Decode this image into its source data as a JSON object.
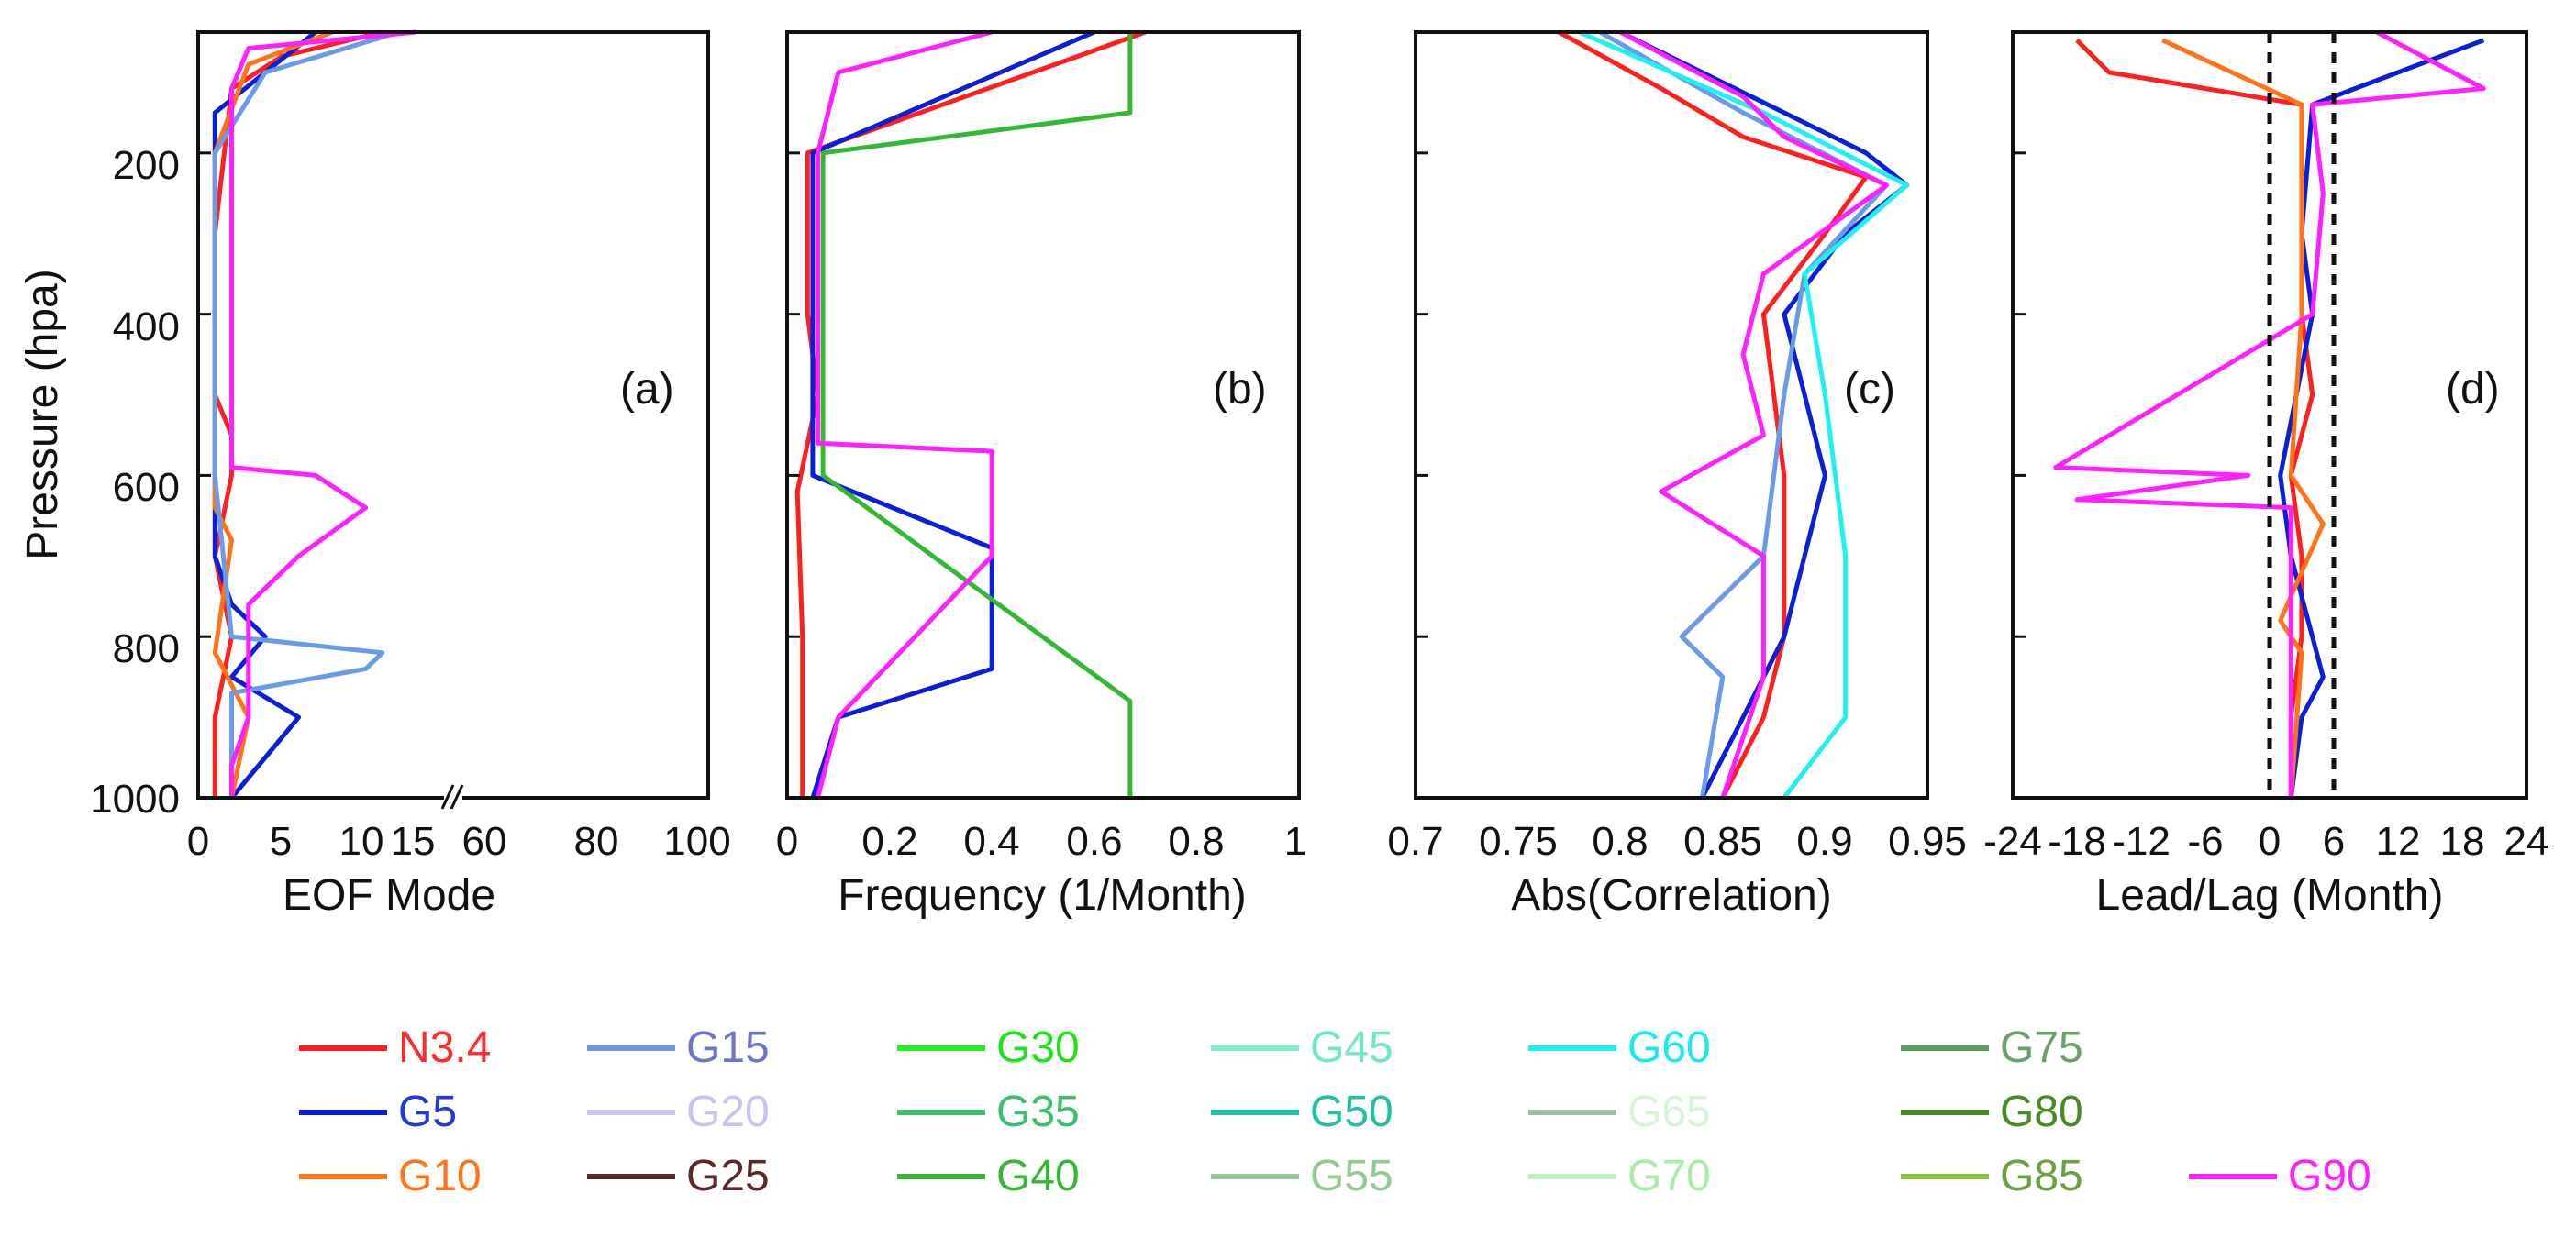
{
  "chart_data": [
    {
      "panel": "a",
      "type": "line",
      "xlabel": "EOF Mode",
      "ylabel": "Pressure (hpa)",
      "broken_x_axis": true,
      "xlim_left": [
        0,
        15
      ],
      "xlim_right": [
        60,
        100
      ],
      "xticks_left": [
        "0",
        "5",
        "10",
        "15"
      ],
      "xticks_right": [
        "60",
        "80",
        "100"
      ],
      "ylim": [
        1000,
        50
      ],
      "yticks": [
        "200",
        "400",
        "600",
        "800",
        "1000"
      ],
      "series": [
        {
          "name": "N3.4",
          "profile": [
            [
              50,
              11
            ],
            [
              80,
              5
            ],
            [
              120,
              2
            ],
            [
              300,
              1
            ],
            [
              400,
              1
            ],
            [
              500,
              1
            ],
            [
              550,
              2
            ],
            [
              600,
              2
            ],
            [
              700,
              1
            ],
            [
              800,
              2
            ],
            [
              900,
              1
            ],
            [
              1000,
              1
            ]
          ]
        },
        {
          "name": "G5",
          "profile": [
            [
              50,
              7
            ],
            [
              100,
              4
            ],
            [
              150,
              1
            ],
            [
              200,
              1
            ],
            [
              400,
              1
            ],
            [
              600,
              1
            ],
            [
              700,
              1
            ],
            [
              760,
              2
            ],
            [
              800,
              4
            ],
            [
              850,
              2
            ],
            [
              900,
              6
            ],
            [
              950,
              4
            ],
            [
              1000,
              2
            ]
          ]
        },
        {
          "name": "G10",
          "profile": [
            [
              50,
              8
            ],
            [
              90,
              3
            ],
            [
              200,
              1
            ],
            [
              400,
              1
            ],
            [
              640,
              1
            ],
            [
              680,
              2
            ],
            [
              820,
              1
            ],
            [
              860,
              2
            ],
            [
              900,
              3
            ],
            [
              1000,
              2
            ]
          ]
        },
        {
          "name": "G15",
          "profile": [
            [
              50,
              12
            ],
            [
              100,
              4
            ],
            [
              200,
              1
            ],
            [
              400,
              1
            ],
            [
              600,
              1
            ],
            [
              800,
              2
            ],
            [
              820,
              11
            ],
            [
              840,
              10
            ],
            [
              870,
              2
            ],
            [
              1000,
              2
            ]
          ]
        },
        {
          "name": "G90",
          "profile": [
            [
              50,
              13
            ],
            [
              70,
              3
            ],
            [
              120,
              2
            ],
            [
              175,
              2
            ],
            [
              300,
              2
            ],
            [
              400,
              2
            ],
            [
              590,
              2
            ],
            [
              600,
              7
            ],
            [
              640,
              10
            ],
            [
              700,
              6
            ],
            [
              760,
              3
            ],
            [
              900,
              3
            ],
            [
              960,
              2
            ],
            [
              1000,
              2
            ]
          ]
        }
      ]
    },
    {
      "panel": "b",
      "type": "line",
      "xlabel": "Frequency (1/Month)",
      "xlim": [
        0,
        1
      ],
      "xticks": [
        "0",
        "0.2",
        "0.4",
        "0.6",
        "0.8",
        "1"
      ],
      "ylim": [
        1000,
        50
      ],
      "series": [
        {
          "name": "N3.4",
          "profile": [
            [
              50,
              0.7
            ],
            [
              200,
              0.04
            ],
            [
              400,
              0.04
            ],
            [
              500,
              0.06
            ],
            [
              620,
              0.02
            ],
            [
              800,
              0.03
            ],
            [
              1000,
              0.03
            ]
          ]
        },
        {
          "name": "G5",
          "profile": [
            [
              50,
              0.6
            ],
            [
              200,
              0.05
            ],
            [
              600,
              0.05
            ],
            [
              690,
              0.4
            ],
            [
              840,
              0.4
            ],
            [
              900,
              0.1
            ],
            [
              1000,
              0.05
            ]
          ]
        },
        {
          "name": "G40",
          "profile": [
            [
              50,
              0.67
            ],
            [
              150,
              0.67
            ],
            [
              200,
              0.07
            ],
            [
              600,
              0.07
            ],
            [
              880,
              0.67
            ],
            [
              1000,
              0.67
            ]
          ]
        },
        {
          "name": "G90",
          "profile": [
            [
              50,
              0.4
            ],
            [
              100,
              0.1
            ],
            [
              200,
              0.06
            ],
            [
              560,
              0.06
            ],
            [
              570,
              0.4
            ],
            [
              700,
              0.4
            ],
            [
              900,
              0.1
            ],
            [
              1000,
              0.06
            ]
          ]
        }
      ]
    },
    {
      "panel": "c",
      "type": "line",
      "xlabel": "Abs(Correlation)",
      "xlim": [
        0.7,
        0.95
      ],
      "xticks": [
        "0.7",
        "0.75",
        "0.8",
        "0.85",
        "0.9",
        "0.95"
      ],
      "ylim": [
        1000,
        50
      ],
      "series": [
        {
          "name": "N3.4",
          "profile": [
            [
              50,
              0.77
            ],
            [
              120,
              0.82
            ],
            [
              180,
              0.86
            ],
            [
              230,
              0.92
            ],
            [
              300,
              0.9
            ],
            [
              400,
              0.87
            ],
            [
              600,
              0.88
            ],
            [
              800,
              0.88
            ],
            [
              900,
              0.87
            ],
            [
              1000,
              0.85
            ]
          ]
        },
        {
          "name": "G5",
          "profile": [
            [
              50,
              0.8
            ],
            [
              150,
              0.88
            ],
            [
              200,
              0.92
            ],
            [
              240,
              0.94
            ],
            [
              300,
              0.91
            ],
            [
              400,
              0.88
            ],
            [
              600,
              0.9
            ],
            [
              800,
              0.88
            ],
            [
              900,
              0.86
            ],
            [
              1000,
              0.84
            ]
          ]
        },
        {
          "name": "G15",
          "profile": [
            [
              50,
              0.79
            ],
            [
              150,
              0.86
            ],
            [
              240,
              0.93
            ],
            [
              350,
              0.89
            ],
            [
              500,
              0.88
            ],
            [
              700,
              0.87
            ],
            [
              800,
              0.83
            ],
            [
              850,
              0.85
            ],
            [
              1000,
              0.84
            ]
          ]
        },
        {
          "name": "G60",
          "profile": [
            [
              50,
              0.78
            ],
            [
              150,
              0.87
            ],
            [
              240,
              0.94
            ],
            [
              350,
              0.89
            ],
            [
              500,
              0.9
            ],
            [
              700,
              0.91
            ],
            [
              900,
              0.91
            ],
            [
              1000,
              0.88
            ]
          ]
        },
        {
          "name": "G90",
          "profile": [
            [
              50,
              0.8
            ],
            [
              130,
              0.86
            ],
            [
              180,
              0.88
            ],
            [
              240,
              0.93
            ],
            [
              350,
              0.87
            ],
            [
              450,
              0.86
            ],
            [
              550,
              0.87
            ],
            [
              620,
              0.82
            ],
            [
              700,
              0.87
            ],
            [
              850,
              0.87
            ],
            [
              1000,
              0.85
            ]
          ]
        }
      ]
    },
    {
      "panel": "d",
      "type": "line",
      "xlabel": "Lead/Lag (Month)",
      "xlim": [
        -24,
        24
      ],
      "xticks": [
        "-24",
        "-18",
        "-12",
        "-6",
        "0",
        "6",
        "12",
        "18",
        "24"
      ],
      "reference_lines_x": [
        0,
        6
      ],
      "ylim": [
        1000,
        50
      ],
      "series": [
        {
          "name": "N3.4",
          "profile": [
            [
              60,
              -18
            ],
            [
              100,
              -15
            ],
            [
              140,
              3
            ],
            [
              200,
              3
            ],
            [
              400,
              3
            ],
            [
              500,
              4
            ],
            [
              600,
              2
            ],
            [
              700,
              3
            ],
            [
              800,
              3
            ],
            [
              900,
              2
            ],
            [
              1000,
              2
            ]
          ]
        },
        {
          "name": "G5",
          "profile": [
            [
              60,
              20
            ],
            [
              140,
              4
            ],
            [
              300,
              3
            ],
            [
              400,
              4
            ],
            [
              600,
              1
            ],
            [
              700,
              2
            ],
            [
              850,
              5
            ],
            [
              900,
              3
            ],
            [
              1000,
              2
            ]
          ]
        },
        {
          "name": "G10",
          "profile": [
            [
              60,
              -10
            ],
            [
              140,
              3
            ],
            [
              400,
              3
            ],
            [
              600,
              2
            ],
            [
              660,
              5
            ],
            [
              780,
              1
            ],
            [
              820,
              3
            ],
            [
              1000,
              2
            ]
          ]
        },
        {
          "name": "G90",
          "profile": [
            [
              50,
              10
            ],
            [
              120,
              20
            ],
            [
              140,
              4
            ],
            [
              250,
              5
            ],
            [
              400,
              4
            ],
            [
              590,
              -20
            ],
            [
              600,
              -2
            ],
            [
              630,
              -18
            ],
            [
              640,
              2
            ],
            [
              800,
              2
            ],
            [
              1000,
              2
            ]
          ]
        }
      ]
    }
  ],
  "panels": [
    {
      "label": "(a)"
    },
    {
      "label": "(b)"
    },
    {
      "label": "(c)"
    },
    {
      "label": "(d)"
    }
  ],
  "legend": [
    {
      "name": "N3.4",
      "color": "#ff1f1f",
      "text_color": "#ff2a2a"
    },
    {
      "name": "G15",
      "color": "#6a9be8",
      "text_color": "#7074c8"
    },
    {
      "name": "G30",
      "color": "#22ee22",
      "text_color": "#20e020"
    },
    {
      "name": "G45",
      "color": "#7ff0c8",
      "text_color": "#6ee8c0"
    },
    {
      "name": "G60",
      "color": "#1ff0f0",
      "text_color": "#18e8f0"
    },
    {
      "name": "G75",
      "color": "#5f9a5f",
      "text_color": "#6d9e6d"
    },
    {
      "name": "G5",
      "color": "#0a1fd8",
      "text_color": "#1f38e0"
    },
    {
      "name": "G20",
      "color": "#c8c8ef",
      "text_color": "#c4c4ee"
    },
    {
      "name": "G35",
      "color": "#3bbf6a",
      "text_color": "#3bbf6a"
    },
    {
      "name": "G50",
      "color": "#20c0a0",
      "text_color": "#20c0a0"
    },
    {
      "name": "G65",
      "color": "#a0bca0",
      "text_color": "#d8f4d8"
    },
    {
      "name": "G80",
      "color": "#4a8a20",
      "text_color": "#4a8a20"
    },
    {
      "name": "G10",
      "color": "#ff7418",
      "text_color": "#ff7418"
    },
    {
      "name": "G25",
      "color": "#5a2a2a",
      "text_color": "#5a2a2a"
    },
    {
      "name": "G40",
      "color": "#34b834",
      "text_color": "#34b834"
    },
    {
      "name": "G55",
      "color": "#94c894",
      "text_color": "#94c894"
    },
    {
      "name": "G70",
      "color": "#bff0bf",
      "text_color": "#a8eca8"
    },
    {
      "name": "G85",
      "color": "#8ac43a",
      "text_color": "#6ca040"
    },
    {
      "name": "G90",
      "color": "#ff1fff",
      "text_color": "#ff1fff"
    }
  ],
  "colors": {
    "axis": "#111111",
    "background": "#ffffff"
  }
}
